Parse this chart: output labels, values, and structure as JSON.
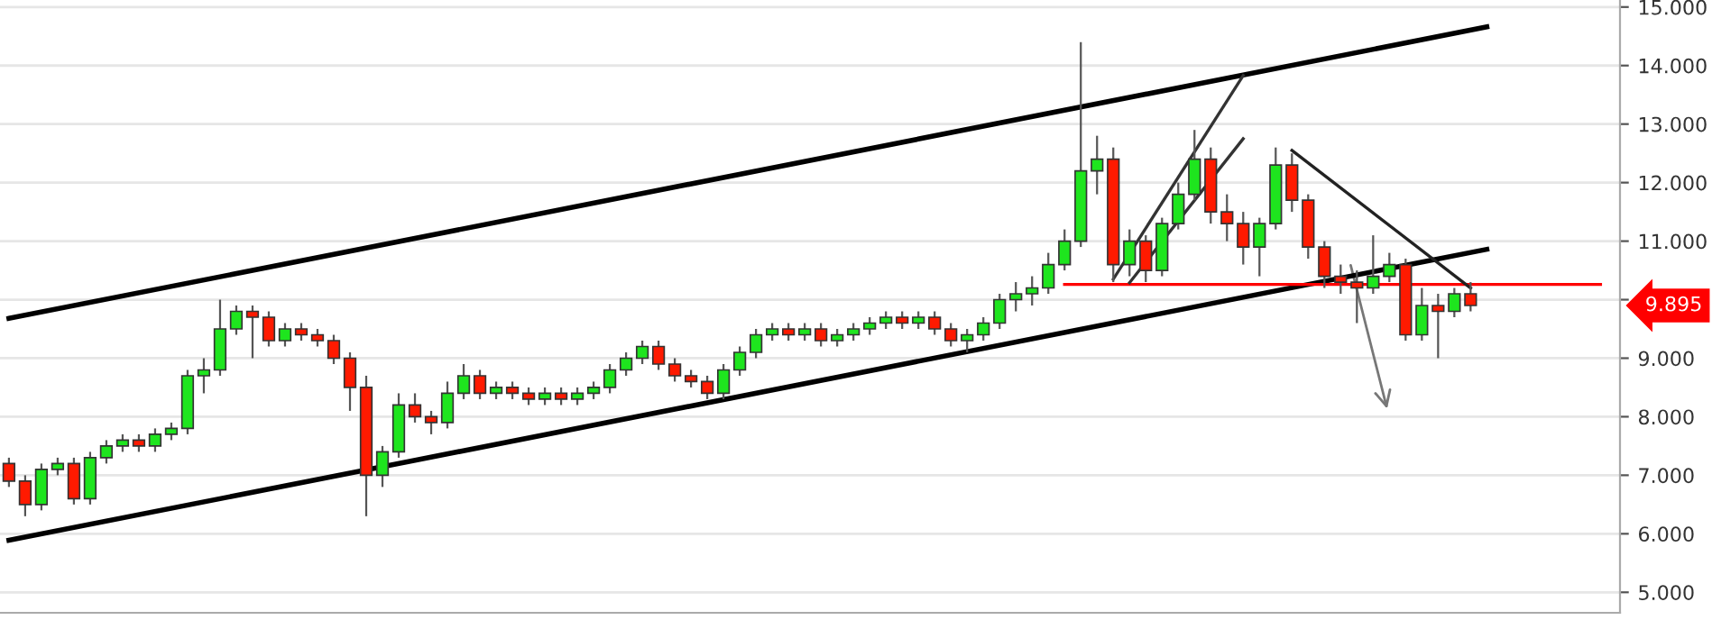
{
  "chart_data": {
    "type": "candlestick",
    "categories": [
      null,
      null,
      null,
      null,
      null,
      null,
      null,
      null,
      null,
      null,
      null,
      null,
      null,
      null,
      null,
      null,
      null,
      null,
      null,
      null,
      null,
      null,
      null,
      null,
      null,
      null,
      null,
      null,
      null,
      null,
      null,
      null,
      null,
      null,
      null,
      null,
      null,
      null,
      null,
      null,
      null,
      null,
      null,
      null,
      null,
      null,
      null,
      null,
      null,
      null,
      null,
      null,
      null,
      null,
      null,
      null,
      null,
      null,
      null,
      null,
      null,
      null,
      null,
      null,
      null,
      null,
      null,
      null,
      null,
      null,
      null,
      null,
      null,
      null,
      null,
      null,
      null,
      null,
      null,
      null,
      null,
      null,
      null,
      null,
      null,
      null,
      null,
      null,
      null,
      null,
      null,
      null,
      null,
      null,
      null,
      null,
      null,
      null,
      null,
      null
    ],
    "ohlc": [
      [
        7.2,
        7.3,
        6.8,
        6.9
      ],
      [
        6.9,
        7.0,
        6.3,
        6.5
      ],
      [
        6.5,
        7.2,
        6.4,
        7.1
      ],
      [
        7.1,
        7.3,
        7.0,
        7.2
      ],
      [
        7.2,
        7.3,
        6.5,
        6.6
      ],
      [
        6.6,
        7.4,
        6.5,
        7.3
      ],
      [
        7.3,
        7.6,
        7.2,
        7.5
      ],
      [
        7.5,
        7.7,
        7.4,
        7.6
      ],
      [
        7.6,
        7.7,
        7.4,
        7.5
      ],
      [
        7.5,
        7.8,
        7.4,
        7.7
      ],
      [
        7.7,
        7.9,
        7.6,
        7.8
      ],
      [
        7.8,
        8.8,
        7.7,
        8.7
      ],
      [
        8.7,
        9.0,
        8.4,
        8.8
      ],
      [
        8.8,
        10.0,
        8.7,
        9.5
      ],
      [
        9.5,
        9.9,
        9.4,
        9.8
      ],
      [
        9.8,
        9.9,
        9.0,
        9.7
      ],
      [
        9.7,
        9.8,
        9.2,
        9.3
      ],
      [
        9.3,
        9.6,
        9.2,
        9.5
      ],
      [
        9.5,
        9.6,
        9.3,
        9.4
      ],
      [
        9.4,
        9.5,
        9.2,
        9.3
      ],
      [
        9.3,
        9.4,
        8.9,
        9.0
      ],
      [
        9.0,
        9.1,
        8.1,
        8.5
      ],
      [
        8.5,
        8.7,
        6.3,
        7.0
      ],
      [
        7.0,
        7.5,
        6.8,
        7.4
      ],
      [
        7.4,
        8.4,
        7.3,
        8.2
      ],
      [
        8.2,
        8.4,
        7.9,
        8.0
      ],
      [
        8.0,
        8.1,
        7.7,
        7.9
      ],
      [
        7.9,
        8.6,
        7.8,
        8.4
      ],
      [
        8.4,
        8.9,
        8.3,
        8.7
      ],
      [
        8.7,
        8.8,
        8.3,
        8.4
      ],
      [
        8.4,
        8.6,
        8.3,
        8.5
      ],
      [
        8.5,
        8.6,
        8.3,
        8.4
      ],
      [
        8.4,
        8.5,
        8.2,
        8.3
      ],
      [
        8.3,
        8.5,
        8.2,
        8.4
      ],
      [
        8.4,
        8.5,
        8.2,
        8.3
      ],
      [
        8.3,
        8.5,
        8.2,
        8.4
      ],
      [
        8.4,
        8.6,
        8.3,
        8.5
      ],
      [
        8.5,
        8.9,
        8.4,
        8.8
      ],
      [
        8.8,
        9.1,
        8.7,
        9.0
      ],
      [
        9.0,
        9.3,
        8.9,
        9.2
      ],
      [
        9.2,
        9.3,
        8.8,
        8.9
      ],
      [
        8.9,
        9.0,
        8.6,
        8.7
      ],
      [
        8.7,
        8.8,
        8.5,
        8.6
      ],
      [
        8.6,
        8.7,
        8.3,
        8.4
      ],
      [
        8.4,
        8.9,
        8.3,
        8.8
      ],
      [
        8.8,
        9.2,
        8.7,
        9.1
      ],
      [
        9.1,
        9.5,
        9.0,
        9.4
      ],
      [
        9.4,
        9.6,
        9.3,
        9.5
      ],
      [
        9.5,
        9.6,
        9.3,
        9.4
      ],
      [
        9.4,
        9.6,
        9.3,
        9.5
      ],
      [
        9.5,
        9.6,
        9.2,
        9.3
      ],
      [
        9.3,
        9.5,
        9.2,
        9.4
      ],
      [
        9.4,
        9.6,
        9.3,
        9.5
      ],
      [
        9.5,
        9.7,
        9.4,
        9.6
      ],
      [
        9.6,
        9.8,
        9.5,
        9.7
      ],
      [
        9.7,
        9.8,
        9.5,
        9.6
      ],
      [
        9.6,
        9.8,
        9.5,
        9.7
      ],
      [
        9.7,
        9.8,
        9.4,
        9.5
      ],
      [
        9.5,
        9.6,
        9.2,
        9.3
      ],
      [
        9.3,
        9.5,
        9.1,
        9.4
      ],
      [
        9.4,
        9.7,
        9.3,
        9.6
      ],
      [
        9.6,
        10.1,
        9.5,
        10.0
      ],
      [
        10.0,
        10.3,
        9.8,
        10.1
      ],
      [
        10.1,
        10.4,
        9.9,
        10.2
      ],
      [
        10.2,
        10.8,
        10.1,
        10.6
      ],
      [
        10.6,
        11.2,
        10.5,
        11.0
      ],
      [
        11.0,
        14.4,
        10.9,
        12.2
      ],
      [
        12.2,
        12.8,
        11.8,
        12.4
      ],
      [
        12.4,
        12.6,
        10.3,
        10.6
      ],
      [
        10.6,
        11.2,
        10.4,
        11.0
      ],
      [
        11.0,
        11.1,
        10.3,
        10.5
      ],
      [
        10.5,
        11.4,
        10.4,
        11.3
      ],
      [
        11.3,
        12.0,
        11.2,
        11.8
      ],
      [
        11.8,
        12.9,
        11.7,
        12.4
      ],
      [
        12.4,
        12.6,
        11.3,
        11.5
      ],
      [
        11.5,
        11.8,
        11.0,
        11.3
      ],
      [
        11.3,
        11.5,
        10.6,
        10.9
      ],
      [
        10.9,
        11.4,
        10.4,
        11.3
      ],
      [
        11.3,
        12.6,
        11.2,
        12.3
      ],
      [
        12.3,
        12.5,
        11.5,
        11.7
      ],
      [
        11.7,
        11.8,
        10.7,
        10.9
      ],
      [
        10.9,
        11.0,
        10.2,
        10.4
      ],
      [
        10.4,
        10.6,
        10.1,
        10.3
      ],
      [
        10.3,
        10.5,
        9.6,
        10.2
      ],
      [
        10.2,
        11.1,
        10.1,
        10.4
      ],
      [
        10.4,
        10.8,
        10.3,
        10.6
      ],
      [
        10.6,
        10.7,
        9.3,
        9.4
      ],
      [
        9.4,
        10.2,
        9.3,
        9.9
      ],
      [
        9.9,
        10.1,
        9.0,
        9.8
      ],
      [
        9.8,
        10.2,
        9.7,
        10.1
      ],
      [
        10.1,
        10.3,
        9.8,
        9.9
      ],
      null,
      null,
      null,
      null,
      null,
      null,
      null,
      null,
      null
    ],
    "colors": [
      "#ff1a00",
      "#ff1a00",
      "#1ee51e",
      "#1ee51e",
      "#ff1a00",
      "#1ee51e",
      "#1ee51e",
      "#1ee51e",
      "#ff1a00",
      "#1ee51e",
      "#1ee51e",
      "#1ee51e",
      "#1ee51e",
      "#1ee51e",
      "#1ee51e",
      "#ff1a00",
      "#ff1a00",
      "#1ee51e",
      "#ff1a00",
      "#ff1a00",
      "#ff1a00",
      "#ff1a00",
      "#ff1a00",
      "#1ee51e",
      "#1ee51e",
      "#ff1a00",
      "#ff1a00",
      "#1ee51e",
      "#1ee51e",
      "#ff1a00",
      "#1ee51e",
      "#ff1a00",
      "#ff1a00",
      "#1ee51e",
      "#ff1a00",
      "#1ee51e",
      "#1ee51e",
      "#1ee51e",
      "#1ee51e",
      "#1ee51e",
      "#ff1a00",
      "#ff1a00",
      "#ff1a00",
      "#ff1a00",
      "#1ee51e",
      "#1ee51e",
      "#1ee51e",
      "#1ee51e",
      "#ff1a00",
      "#1ee51e",
      "#ff1a00",
      "#1ee51e",
      "#1ee51e",
      "#1ee51e",
      "#1ee51e",
      "#ff1a00",
      "#1ee51e",
      "#ff1a00",
      "#ff1a00",
      "#1ee51e",
      "#1ee51e",
      "#1ee51e",
      "#1ee51e",
      "#1ee51e",
      "#1ee51e",
      "#1ee51e",
      "#1ee51e",
      "#1ee51e",
      "#ff1a00",
      "#1ee51e",
      "#ff1a00",
      "#1ee51e",
      "#1ee51e",
      "#1ee51e",
      "#ff1a00",
      "#ff1a00",
      "#ff1a00",
      "#1ee51e",
      "#1ee51e",
      "#ff1a00",
      "#ff1a00",
      "#ff1a00",
      "#ff1a00",
      "#ff1a00",
      "#1ee51e",
      "#1ee51e",
      "#ff1a00",
      "#1ee51e",
      "#ff1a00",
      "#1ee51e",
      "#ff1a00",
      null,
      null,
      null,
      null,
      null,
      null,
      null,
      null,
      null
    ],
    "series": [
      {
        "type": "line",
        "color": "#000000",
        "values": [
          9.68,
          null,
          null,
          null,
          null,
          null,
          null,
          null,
          null,
          null,
          null,
          null,
          null,
          null,
          null,
          null,
          null,
          null,
          null,
          null,
          null,
          null,
          null,
          null,
          null,
          null,
          null,
          null,
          null,
          null,
          null,
          null,
          null,
          null,
          null,
          null,
          null,
          null,
          null,
          null,
          null,
          null,
          null,
          null,
          null,
          null,
          null,
          null,
          null,
          null,
          null,
          null,
          null,
          null,
          null,
          null,
          null,
          null,
          null,
          null,
          null,
          null,
          null,
          null,
          null,
          null,
          null,
          null,
          null,
          null,
          null,
          null,
          null,
          null,
          null,
          null,
          null,
          null,
          null,
          null,
          null,
          null,
          null,
          null,
          null,
          null,
          null,
          null,
          null,
          null,
          null,
          14.66,
          null,
          null,
          null,
          null,
          null,
          null,
          null,
          null
        ]
      },
      {
        "type": "line",
        "color": "#000000",
        "values": [
          5.89,
          null,
          null,
          null,
          null,
          null,
          null,
          null,
          null,
          null,
          null,
          null,
          null,
          null,
          null,
          null,
          null,
          null,
          null,
          null,
          null,
          null,
          null,
          null,
          null,
          null,
          null,
          null,
          null,
          null,
          null,
          null,
          null,
          null,
          null,
          null,
          null,
          null,
          null,
          null,
          null,
          null,
          null,
          null,
          null,
          null,
          null,
          null,
          null,
          null,
          null,
          null,
          null,
          null,
          null,
          null,
          null,
          null,
          null,
          null,
          null,
          null,
          null,
          null,
          null,
          null,
          null,
          null,
          null,
          null,
          null,
          null,
          null,
          null,
          null,
          null,
          null,
          null,
          null,
          null,
          null,
          null,
          null,
          null,
          null,
          null,
          null,
          null,
          null,
          null,
          null,
          10.86,
          null,
          null,
          null,
          null,
          null,
          null,
          null,
          null
        ]
      },
      {
        "type": "line",
        "color": "#ff0000",
        "values": [
          null,
          null,
          null,
          null,
          null,
          null,
          null,
          null,
          null,
          null,
          null,
          null,
          null,
          null,
          null,
          null,
          null,
          null,
          null,
          null,
          null,
          null,
          null,
          null,
          null,
          null,
          null,
          null,
          null,
          null,
          null,
          null,
          null,
          null,
          null,
          null,
          null,
          null,
          null,
          null,
          null,
          null,
          null,
          null,
          null,
          null,
          null,
          null,
          null,
          null,
          null,
          null,
          null,
          null,
          null,
          null,
          null,
          null,
          null,
          null,
          null,
          null,
          null,
          null,
          null,
          10.26,
          null,
          null,
          null,
          null,
          null,
          null,
          null,
          null,
          null,
          null,
          null,
          null,
          null,
          null,
          null,
          null,
          null,
          null,
          null,
          null,
          null,
          null,
          null,
          null,
          null,
          null,
          null,
          null,
          null,
          null,
          null,
          null,
          10.26,
          null
        ]
      },
      {
        "type": "line",
        "color": "#222222",
        "values": [
          null,
          null,
          null,
          null,
          null,
          null,
          null,
          null,
          null,
          null,
          null,
          null,
          null,
          null,
          null,
          null,
          null,
          null,
          null,
          null,
          null,
          null,
          null,
          null,
          null,
          null,
          null,
          null,
          null,
          null,
          null,
          null,
          null,
          null,
          null,
          null,
          null,
          null,
          null,
          null,
          null,
          null,
          null,
          null,
          null,
          null,
          null,
          null,
          null,
          null,
          null,
          null,
          null,
          null,
          null,
          null,
          null,
          null,
          null,
          null,
          null,
          null,
          null,
          null,
          null,
          null,
          null,
          null,
          null,
          null,
          null,
          null,
          null,
          null,
          null,
          null,
          null,
          null,
          null,
          12.55,
          null,
          null,
          null,
          null,
          null,
          null,
          null,
          null,
          null,
          null,
          10.2,
          null,
          null,
          null,
          null,
          null,
          null,
          null,
          null,
          null
        ]
      },
      {
        "type": "line",
        "color": "#333333",
        "values": [
          null,
          null,
          null,
          null,
          null,
          null,
          null,
          null,
          null,
          null,
          null,
          null,
          null,
          null,
          null,
          null,
          null,
          null,
          null,
          null,
          null,
          null,
          null,
          null,
          null,
          null,
          null,
          null,
          null,
          null,
          null,
          null,
          null,
          null,
          null,
          null,
          null,
          null,
          null,
          null,
          null,
          null,
          null,
          null,
          null,
          null,
          null,
          null,
          null,
          null,
          null,
          null,
          null,
          null,
          null,
          null,
          null,
          null,
          null,
          null,
          null,
          null,
          null,
          null,
          null,
          null,
          null,
          null,
          10.35,
          null,
          null,
          null,
          null,
          null,
          null,
          null,
          13.83,
          null,
          null,
          null,
          null,
          null,
          null,
          null,
          null,
          null,
          null,
          null,
          null,
          null,
          null,
          null,
          null,
          null,
          null,
          null,
          null,
          null,
          null,
          null
        ]
      },
      {
        "type": "line",
        "color": "#333333",
        "values": [
          null,
          null,
          null,
          null,
          null,
          null,
          null,
          null,
          null,
          null,
          null,
          null,
          null,
          null,
          null,
          null,
          null,
          null,
          null,
          null,
          null,
          null,
          null,
          null,
          null,
          null,
          null,
          null,
          null,
          null,
          null,
          null,
          null,
          null,
          null,
          null,
          null,
          null,
          null,
          null,
          null,
          null,
          null,
          null,
          null,
          null,
          null,
          null,
          null,
          null,
          null,
          null,
          null,
          null,
          null,
          null,
          null,
          null,
          null,
          null,
          null,
          null,
          null,
          null,
          null,
          null,
          null,
          null,
          null,
          10.29,
          null,
          null,
          null,
          null,
          null,
          null,
          12.75,
          null,
          null,
          null,
          null,
          null,
          null,
          null,
          null,
          null,
          null,
          null,
          null,
          null,
          null,
          null,
          null,
          null,
          null,
          null,
          null,
          null,
          null,
          null
        ]
      }
    ],
    "ylim": [
      4.65,
      15.12
    ],
    "yticks": [
      {
        "value": 5,
        "label": "5.000"
      },
      {
        "value": 6,
        "label": "6.000"
      },
      {
        "value": 7,
        "label": "7.000"
      },
      {
        "value": 8,
        "label": "8.000"
      },
      {
        "value": 9,
        "label": "9.000"
      },
      {
        "value": 10,
        "label": null
      },
      {
        "value": 11,
        "label": "11.000"
      },
      {
        "value": 12,
        "label": "12.000"
      },
      {
        "value": 13,
        "label": "13.000"
      },
      {
        "value": 14,
        "label": "14.000"
      },
      {
        "value": 15,
        "label": "15.000"
      }
    ],
    "grid": "y",
    "annotations": [
      "9.895"
    ]
  }
}
